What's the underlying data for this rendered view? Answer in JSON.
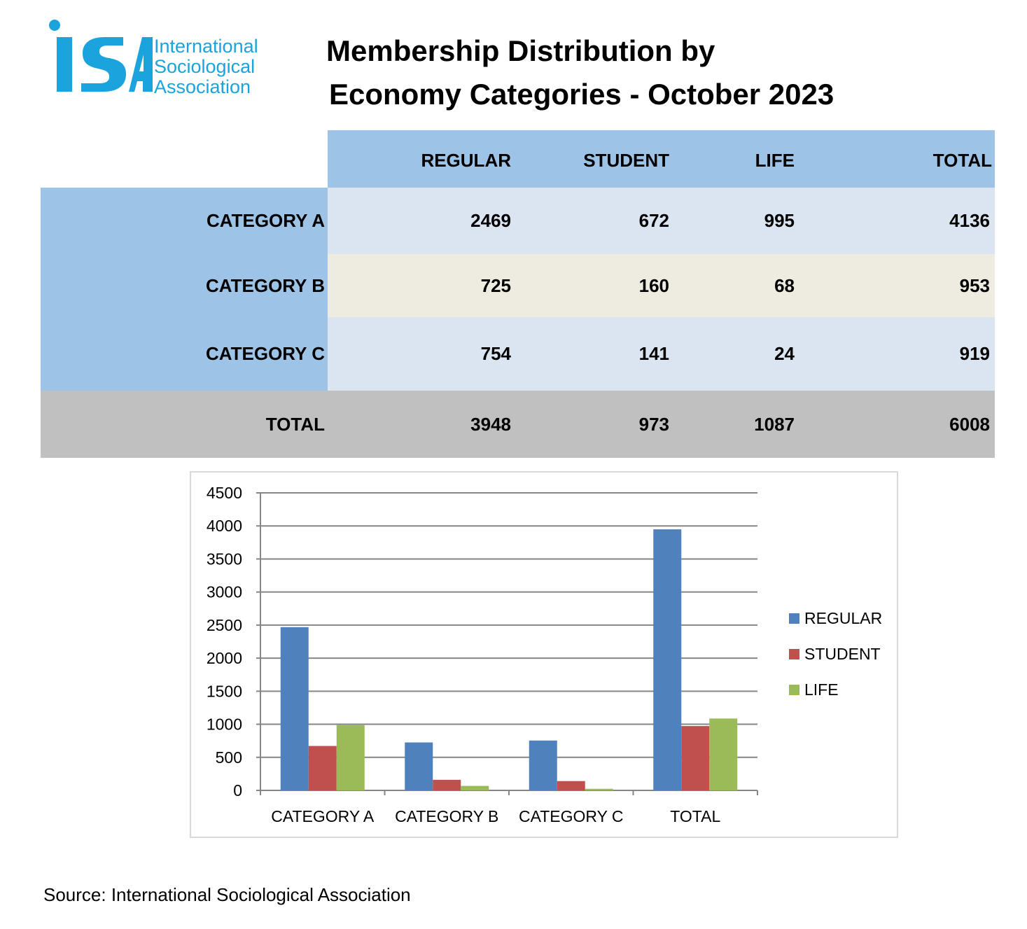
{
  "logo": {
    "mark_text": "ISA",
    "lines": [
      "International",
      "Sociological",
      "Association"
    ],
    "color": "#1aa3dc"
  },
  "title": {
    "line1": "Membership Distribution by",
    "line2": "Economy Categories - October 2023"
  },
  "table": {
    "headers": [
      "REGULAR",
      "STUDENT",
      "LIFE",
      "TOTAL"
    ],
    "rows": [
      {
        "label": "CATEGORY A",
        "regular": "2469",
        "student": "672",
        "life": "995",
        "total": "4136"
      },
      {
        "label": "CATEGORY B",
        "regular": "725",
        "student": "160",
        "life": "68",
        "total": "953"
      },
      {
        "label": "CATEGORY C",
        "regular": "754",
        "student": "141",
        "life": "24",
        "total": "919"
      }
    ],
    "total_row": {
      "label": "TOTAL",
      "regular": "3948",
      "student": "973",
      "life": "1087",
      "total": "6008"
    }
  },
  "chart_data": {
    "type": "bar",
    "categories": [
      "CATEGORY A",
      "CATEGORY B",
      "CATEGORY C",
      "TOTAL"
    ],
    "series": [
      {
        "name": "REGULAR",
        "values": [
          2469,
          725,
          754,
          3948
        ],
        "color": "#4f81bd"
      },
      {
        "name": "STUDENT",
        "values": [
          672,
          160,
          141,
          973
        ],
        "color": "#c0504d"
      },
      {
        "name": "LIFE",
        "values": [
          995,
          68,
          24,
          1087
        ],
        "color": "#9bbb59"
      }
    ],
    "ylim": [
      0,
      4500
    ],
    "yticks": [
      0,
      500,
      1000,
      1500,
      2000,
      2500,
      3000,
      3500,
      4000,
      4500
    ],
    "grid": true,
    "legend_position": "right"
  },
  "source": "Source: International Sociological Association"
}
